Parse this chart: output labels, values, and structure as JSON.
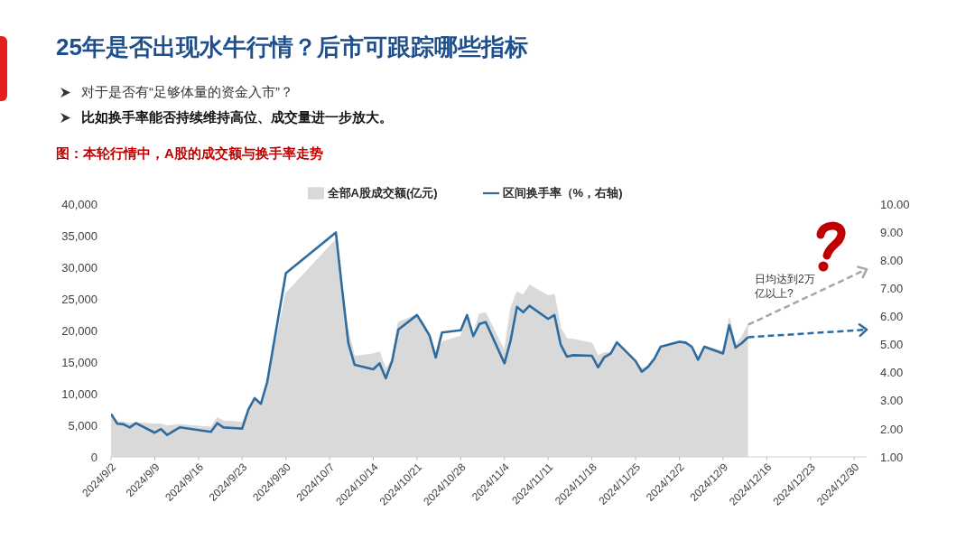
{
  "chart_data": {
    "type": "area",
    "title": "25年是否出现水牛行情？后市可跟踪哪些指标",
    "subtitle": "图：本轮行情中，A股的成交额与换手率走势",
    "annotations": [
      "对于是否有“足够体量的资金入市”？",
      "比如换手率能否持续维持高位、成交量进一步放大。",
      "日均达到2万亿以上?"
    ],
    "x": [
      "2024-09-02",
      "2024-09-03",
      "2024-09-04",
      "2024-09-05",
      "2024-09-06",
      "2024-09-09",
      "2024-09-10",
      "2024-09-11",
      "2024-09-12",
      "2024-09-13",
      "2024-09-18",
      "2024-09-19",
      "2024-09-20",
      "2024-09-23",
      "2024-09-24",
      "2024-09-25",
      "2024-09-26",
      "2024-09-27",
      "2024-09-30",
      "2024-10-08",
      "2024-10-09",
      "2024-10-10",
      "2024-10-11",
      "2024-10-14",
      "2024-10-15",
      "2024-10-16",
      "2024-10-17",
      "2024-10-18",
      "2024-10-21",
      "2024-10-22",
      "2024-10-23",
      "2024-10-24",
      "2024-10-25",
      "2024-10-28",
      "2024-10-29",
      "2024-10-30",
      "2024-10-31",
      "2024-11-01",
      "2024-11-04",
      "2024-11-05",
      "2024-11-06",
      "2024-11-07",
      "2024-11-08",
      "2024-11-11",
      "2024-11-12",
      "2024-11-13",
      "2024-11-14",
      "2024-11-15",
      "2024-11-18",
      "2024-11-19",
      "2024-11-20",
      "2024-11-21",
      "2024-11-22",
      "2024-11-25",
      "2024-11-26",
      "2024-11-27",
      "2024-11-28",
      "2024-11-29",
      "2024-12-02",
      "2024-12-03",
      "2024-12-04",
      "2024-12-05",
      "2024-12-06",
      "2024-12-09",
      "2024-12-10",
      "2024-12-11",
      "2024-12-12",
      "2024-12-13"
    ],
    "series": [
      {
        "name": "全部A股成交额(亿元)",
        "color": "#d9d9d9",
        "values": [
          6800,
          5600,
          5500,
          5300,
          5400,
          5200,
          5200,
          4900,
          5000,
          5100,
          4700,
          6200,
          5700,
          5500,
          7400,
          9200,
          8300,
          11700,
          25900,
          34400,
          24500,
          19900,
          15900,
          16300,
          16600,
          13900,
          15500,
          21300,
          22500,
          21300,
          19400,
          15900,
          18200,
          19100,
          22400,
          19400,
          22600,
          22800,
          16800,
          23500,
          26100,
          25600,
          27200,
          25500,
          25700,
          20400,
          18700,
          18600,
          18000,
          16000,
          16500,
          16500,
          18100,
          15100,
          14000,
          14300,
          15600,
          17500,
          18300,
          18200,
          17500,
          15500,
          17600,
          16700,
          22000,
          17800,
          19000,
          20900
        ]
      },
      {
        "name": "区间换手率（%，右轴)",
        "type": "line",
        "color": "#2e6b9e",
        "axis": "y2",
        "values": [
          2.53,
          2.18,
          2.16,
          2.05,
          2.2,
          1.86,
          1.99,
          1.78,
          1.92,
          2.05,
          1.89,
          2.2,
          2.05,
          2.01,
          2.69,
          3.09,
          2.89,
          3.66,
          7.54,
          8.99,
          6.98,
          5.05,
          4.28,
          4.12,
          4.33,
          3.8,
          4.41,
          5.53,
          6.05,
          5.69,
          5.32,
          4.54,
          5.43,
          5.51,
          6.05,
          5.3,
          5.73,
          5.8,
          4.33,
          5.16,
          6.34,
          6.15,
          6.38,
          5.91,
          6.05,
          5.0,
          4.57,
          4.62,
          4.6,
          4.19,
          4.55,
          4.68,
          5.08,
          4.41,
          4.03,
          4.21,
          4.49,
          4.92,
          5.1,
          5.07,
          4.92,
          4.46,
          4.92,
          4.68,
          5.69,
          4.89,
          5.05,
          5.26
        ]
      }
    ],
    "xlim": [
      "2024-09-02",
      "2025-01-01"
    ],
    "xticks": [
      {
        "value": "2024-09-02",
        "label": "2024/9/2"
      },
      {
        "value": "2024-09-09",
        "label": "2024/9/9"
      },
      {
        "value": "2024-09-16",
        "label": "2024/9/16"
      },
      {
        "value": "2024-09-23",
        "label": "2024/9/23"
      },
      {
        "value": "2024-09-30",
        "label": "2024/9/30"
      },
      {
        "value": "2024-10-07",
        "label": "2024/10/7"
      },
      {
        "value": "2024-10-14",
        "label": "2024/10/14"
      },
      {
        "value": "2024-10-21",
        "label": "2024/10/21"
      },
      {
        "value": "2024-10-28",
        "label": "2024/10/28"
      },
      {
        "value": "2024-11-04",
        "label": "2024/11/4"
      },
      {
        "value": "2024-11-11",
        "label": "2024/11/11"
      },
      {
        "value": "2024-11-18",
        "label": "2024/11/18"
      },
      {
        "value": "2024-11-25",
        "label": "2024/11/25"
      },
      {
        "value": "2024-12-02",
        "label": "2024/12/2"
      },
      {
        "value": "2024-12-09",
        "label": "2024/12/9"
      },
      {
        "value": "2024-12-16",
        "label": "2024/12/16"
      },
      {
        "value": "2024-12-23",
        "label": "2024/12/23"
      },
      {
        "value": "2024-12-30",
        "label": "2024/12/30"
      }
    ],
    "ylim": [
      0,
      40000
    ],
    "yticks": [
      0,
      {
        "value": 5000,
        "label": "5,000"
      },
      {
        "value": 10000,
        "label": "10,000"
      },
      {
        "value": 15000,
        "label": "15,000"
      },
      {
        "value": 20000,
        "label": "20,000"
      },
      {
        "value": 25000,
        "label": "25,000"
      },
      {
        "value": 30000,
        "label": "30,000"
      },
      {
        "value": 35000,
        "label": "35,000"
      },
      {
        "value": 40000,
        "label": "40,000"
      }
    ],
    "y2lim": [
      1,
      10
    ],
    "y2ticks": [
      {
        "value": 1,
        "label": "1.00"
      },
      {
        "value": 2,
        "label": "2.00"
      },
      {
        "value": 3,
        "label": "3.00"
      },
      {
        "value": 4,
        "label": "4.00"
      },
      {
        "value": 5,
        "label": "5.00"
      },
      {
        "value": 6,
        "label": "6.00"
      },
      {
        "value": 7,
        "label": "7.00"
      },
      {
        "value": 8,
        "label": "8.00"
      },
      {
        "value": 9,
        "label": "9.00"
      },
      {
        "value": 10,
        "label": "10.00"
      }
    ],
    "legend": "top"
  }
}
